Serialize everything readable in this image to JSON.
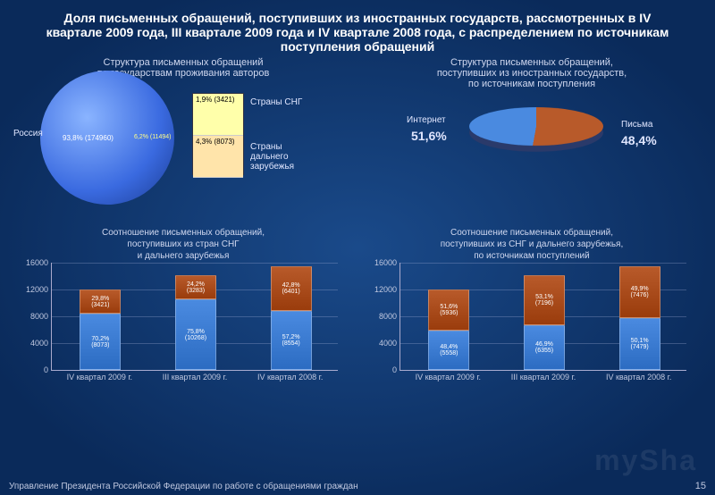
{
  "colors": {
    "bg_center": "#1a4a8a",
    "bg_edge": "#0a2a5a",
    "blue_light": "#8ab4ff",
    "blue": "#4a8ae0",
    "blue_dark": "#1a3a90",
    "brown": "#b85a2a",
    "brown_dark": "#7a3a1a",
    "text": "#ffffff",
    "text_muted": "#d0d8f0",
    "text_dim": "#c0c8e0",
    "grid": "#aabbdd"
  },
  "title": "Доля письменных обращений, поступивших из иностранных государств, рассмотренных в IV квартале 2009 года, III квартале 2009 года и IV квартале 2008 года, с распределением по источникам поступления обращений",
  "title_fontsize": 14,
  "pie_left": {
    "subtitle": "Структура письменных обращений\nпо государствам проживания авторов",
    "label_russia": "Россия",
    "center_label": "93,8% (174960)",
    "wedge_label": "6,2% (11494)",
    "callout": [
      {
        "text": "1,9% (3421)",
        "bg": "#ffffaa"
      },
      {
        "text": "4,3% (8073)",
        "bg": "#ffe4aa"
      }
    ],
    "label_cis": "Страны СНГ",
    "label_far": "Страны\nдальнего\nзарубежья"
  },
  "pie_right": {
    "subtitle": "Структура письменных обращений,\nпоступивших из иностранных государств,\nпо источникам поступления",
    "label_internet": "Интернет",
    "val_internet": "51,6%",
    "label_letters": "Письма",
    "val_letters": "48,4%",
    "slice_internet_deg": 186,
    "color_internet": "#b85a2a",
    "color_letters": "#4a8ae0"
  },
  "chart_left": {
    "title": "Соотношение письменных обращений,\nпоступивших из стран СНГ\nи дальнего зарубежья",
    "ymax": 16000,
    "ytick_step": 4000,
    "yticks": [
      "0",
      "4000",
      "8000",
      "12000",
      "16000"
    ],
    "bars": [
      {
        "x": "IV квартал 2009 г.",
        "segs": [
          {
            "v": 8073,
            "pct": "70,2%",
            "n": "(8073)",
            "c": "#4a8ae0"
          },
          {
            "v": 3421,
            "pct": "29,8%",
            "n": "(3421)",
            "c": "#b85a2a"
          }
        ],
        "total": 11494
      },
      {
        "x": "III квартал 2009 г.",
        "segs": [
          {
            "v": 10268,
            "pct": "75,8%",
            "n": "(10268)",
            "c": "#4a8ae0"
          },
          {
            "v": 3283,
            "pct": "24,2%",
            "n": "(3283)",
            "c": "#b85a2a"
          }
        ],
        "total": 13551
      },
      {
        "x": "IV квартал 2008 г.",
        "segs": [
          {
            "v": 8554,
            "pct": "57,2%",
            "n": "(8554)",
            "c": "#4a8ae0"
          },
          {
            "v": 6401,
            "pct": "42,8%",
            "n": "(6401)",
            "c": "#b85a2a"
          }
        ],
        "total": 14955
      }
    ]
  },
  "chart_right": {
    "title": "Соотношение письменных обращений,\nпоступивших из СНГ и дальнего зарубежья,\nпо источникам поступлений",
    "ymax": 16000,
    "ytick_step": 4000,
    "yticks": [
      "0",
      "4000",
      "8000",
      "12000",
      "16000"
    ],
    "bars": [
      {
        "x": "IV квартал 2009 г.",
        "segs": [
          {
            "v": 5558,
            "pct": "48,4%",
            "n": "(5558)",
            "c": "#4a8ae0"
          },
          {
            "v": 5936,
            "pct": "51,6%",
            "n": "(5936)",
            "c": "#b85a2a"
          }
        ],
        "total": 11494
      },
      {
        "x": "III квартал 2009 г.",
        "segs": [
          {
            "v": 6355,
            "pct": "46,9%",
            "n": "(6355)",
            "c": "#4a8ae0"
          },
          {
            "v": 7196,
            "pct": "53,1%",
            "n": "(7196)",
            "c": "#b85a2a"
          }
        ],
        "total": 13551
      },
      {
        "x": "IV квартал 2008 г.",
        "segs": [
          {
            "v": 7479,
            "pct": "50,1%",
            "n": "(7479)",
            "c": "#4a8ae0"
          },
          {
            "v": 7476,
            "pct": "49,9%",
            "n": "(7476)",
            "c": "#b85a2a"
          }
        ],
        "total": 14955
      }
    ]
  },
  "footer": "Управление Президента Российской Федерации по работе с обращениями граждан",
  "pagenum": "15",
  "watermark": "mySha"
}
